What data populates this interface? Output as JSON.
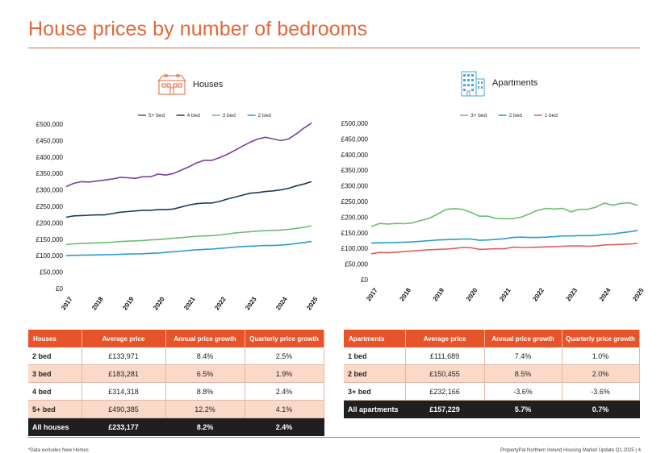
{
  "page": {
    "title": "House prices by number of bedrooms",
    "footer_note": "*Data excludes New Homes",
    "footer_brand": "PropertyPal",
    "footer_report": "Northern Ireland Housing Market Update Q1 2025",
    "footer_page": "4"
  },
  "colors": {
    "accent": "#e2673a",
    "header_orange": "#e8542a",
    "alt_row": "#fbd9c8",
    "total_row": "#1f1f1f",
    "houses_icon": "#e2673a",
    "apartments_icon": "#4aa6d6"
  },
  "houses": {
    "heading": "Houses",
    "icon": "house-icon"
  },
  "apartments": {
    "heading": "Apartments",
    "icon": "apartment-building-icon"
  },
  "chart_data": [
    {
      "type": "line",
      "name": "houses",
      "legend_position": "top-center",
      "grid": false,
      "ylim": [
        0,
        500000
      ],
      "yticks": [
        "£0",
        "£50,000",
        "£100,000",
        "£150,000",
        "£200,000",
        "£250,000",
        "£300,000",
        "£350,000",
        "£400,000",
        "£450,000",
        "£500,000"
      ],
      "xticks": [
        "2017",
        "2018",
        "2019",
        "2020",
        "2021",
        "2022",
        "2023",
        "2024",
        "2025"
      ],
      "x_start": 2017,
      "x_step": 0.25,
      "series": [
        {
          "name": "5+ bed",
          "color": "#7b3f98",
          "values": [
            310000,
            320000,
            325000,
            324000,
            327000,
            330000,
            333000,
            338000,
            337000,
            335000,
            340000,
            340000,
            348000,
            345000,
            350000,
            360000,
            370000,
            382000,
            390000,
            390000,
            398000,
            408000,
            420000,
            433000,
            445000,
            455000,
            460000,
            455000,
            450000,
            455000,
            470000,
            488000,
            503000
          ]
        },
        {
          "name": "4 bed",
          "color": "#1f3b5c",
          "values": [
            217000,
            221000,
            222000,
            223000,
            224000,
            224000,
            228000,
            232000,
            234000,
            236000,
            238000,
            238000,
            240000,
            240000,
            242000,
            248000,
            254000,
            258000,
            260000,
            260000,
            265000,
            272000,
            278000,
            284000,
            290000,
            292000,
            295000,
            297000,
            300000,
            305000,
            312000,
            318000,
            325000
          ]
        },
        {
          "name": "3 bed",
          "color": "#6dbd6d",
          "values": [
            134000,
            136000,
            137000,
            138000,
            139000,
            140000,
            141000,
            143000,
            144000,
            145000,
            146000,
            148000,
            149000,
            151000,
            153000,
            155000,
            157000,
            159000,
            160000,
            161000,
            163000,
            166000,
            169000,
            171000,
            173000,
            175000,
            176000,
            177000,
            178000,
            180000,
            183000,
            186000,
            191000
          ]
        },
        {
          "name": "2 bed",
          "color": "#2a9ccc",
          "values": [
            100000,
            101000,
            101500,
            102000,
            102500,
            103000,
            103500,
            104000,
            105000,
            105500,
            106000,
            107000,
            108000,
            110000,
            112000,
            114000,
            116000,
            118000,
            119000,
            120000,
            122000,
            124000,
            126000,
            128000,
            129000,
            130000,
            131000,
            131000,
            132000,
            134000,
            137000,
            140000,
            143000
          ]
        }
      ]
    },
    {
      "type": "line",
      "name": "apartments",
      "legend_position": "top-center",
      "grid": false,
      "ylim": [
        0,
        500000
      ],
      "yticks": [
        "£0",
        "£50,000",
        "£100,000",
        "£150,000",
        "£200,000",
        "£250,000",
        "£300,000",
        "£350,000",
        "£400,000",
        "£450,000",
        "£500,000"
      ],
      "xticks": [
        "2017",
        "2018",
        "2019",
        "2020",
        "2021",
        "2022",
        "2023",
        "2024",
        "2025"
      ],
      "x_start": 2017,
      "x_step": 0.25,
      "series": [
        {
          "name": "3+ bed",
          "color": "#6dbd6d",
          "values": [
            170000,
            180000,
            178000,
            180000,
            179000,
            182000,
            190000,
            197000,
            210000,
            225000,
            227000,
            225000,
            215000,
            203000,
            203000,
            196000,
            195000,
            195000,
            200000,
            210000,
            222000,
            228000,
            226000,
            228000,
            217000,
            225000,
            225000,
            232000,
            245000,
            238000,
            244000,
            246000,
            238000
          ]
        },
        {
          "name": "2 bed",
          "color": "#2a9ccc",
          "values": [
            117000,
            118000,
            118000,
            119000,
            120000,
            121000,
            123000,
            125000,
            127000,
            128000,
            129000,
            130000,
            130000,
            126000,
            127000,
            129000,
            131000,
            135000,
            136000,
            135000,
            135000,
            136000,
            138000,
            140000,
            140000,
            141000,
            141000,
            142000,
            145000,
            146000,
            150000,
            153000,
            157000
          ]
        },
        {
          "name": "1 bed",
          "color": "#e45a5a",
          "values": [
            83000,
            87000,
            86000,
            88000,
            90000,
            92000,
            94000,
            96000,
            97000,
            98000,
            100000,
            103000,
            102000,
            97000,
            98000,
            99000,
            99000,
            104000,
            103000,
            103000,
            104000,
            105000,
            106000,
            107000,
            108000,
            108000,
            107000,
            108000,
            111000,
            112000,
            113000,
            114000,
            116000
          ]
        }
      ]
    }
  ],
  "houses_table": {
    "headers": [
      "Houses",
      "Average price",
      "Annual price growth",
      "Quarterly price growth"
    ],
    "rows": [
      [
        "2 bed",
        "£133,971",
        "8.4%",
        "2.5%"
      ],
      [
        "3 bed",
        "£183,281",
        "6.5%",
        "1.9%"
      ],
      [
        "4 bed",
        "£314,318",
        "8.8%",
        "2.4%"
      ],
      [
        "5+ bed",
        "£490,385",
        "12.2%",
        "4.1%"
      ]
    ],
    "total": [
      "All houses",
      "£233,177",
      "8.2%",
      "2.4%"
    ]
  },
  "apartments_table": {
    "headers": [
      "Apartments",
      "Average price",
      "Annual price growth",
      "Quarterly price growth"
    ],
    "rows": [
      [
        "1 bed",
        "£111,689",
        "7.4%",
        "1.0%"
      ],
      [
        "2 bed",
        "£150,455",
        "8.5%",
        "2.0%"
      ],
      [
        "3+ bed",
        "£232,166",
        "-3.6%",
        "-3.6%"
      ]
    ],
    "total": [
      "All apartments",
      "£157,229",
      "5.7%",
      "0.7%"
    ]
  }
}
